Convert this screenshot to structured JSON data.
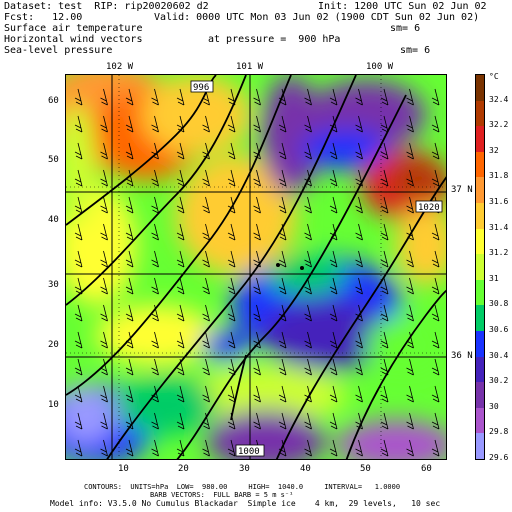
{
  "header": {
    "dataset_line": "Dataset: test  RIP: rip20020602 d2",
    "init_line": "Init: 1200 UTC Sun 02 Jun 02",
    "fcst_line": "Fcst:   12.00",
    "valid_line": "Valid: 0000 UTC Mon 03 Jun 02 (1900 CDT Sun 02 Jun 02)",
    "field1": "Surface air temperature",
    "field2": "Horizontal wind vectors",
    "field3": "Sea-level pressure",
    "pressure_line": "at pressure =  900 hPa",
    "sm1": "sm= 6",
    "sm2": "sm= 6"
  },
  "map": {
    "lon_labels": [
      "102 W",
      "101 W",
      "100 W"
    ],
    "lat_labels": [
      "37 N",
      "36 N"
    ],
    "x_ticks": [
      "10",
      "20",
      "30",
      "40",
      "50",
      "60"
    ],
    "y_ticks": [
      "60",
      "50",
      "40",
      "30",
      "20",
      "10"
    ],
    "contour_labels": [
      "996",
      "1020",
      "1000"
    ]
  },
  "colorbar": {
    "unit": "°C",
    "labels": [
      "32.4",
      "32.2",
      "32",
      "31.8",
      "31.6",
      "31.4",
      "31.2",
      "31",
      "30.8",
      "30.6",
      "30.4",
      "30.2",
      "30",
      "29.8",
      "29.6"
    ],
    "colors": [
      "#7a3300",
      "#b03a00",
      "#e02020",
      "#ff6600",
      "#ff9933",
      "#ffcc33",
      "#ffff33",
      "#ccff33",
      "#66ff33",
      "#00cc66",
      "#1a33ff",
      "#4422bb",
      "#7733aa",
      "#aa55cc",
      "#9999ff"
    ]
  },
  "footer": {
    "line1": "CONTOURS:  UNITS=hPa  LOW=  980.00     HIGH=  1040.0     INTERVAL=   1.0000",
    "line2": "BARB VECTORS:  FULL BARB = 5 m s⁻¹",
    "line3": "Model info: V3.5.0 No Cumulus Blackadar  Simple ice    4 km,  29 levels,   10 sec"
  }
}
